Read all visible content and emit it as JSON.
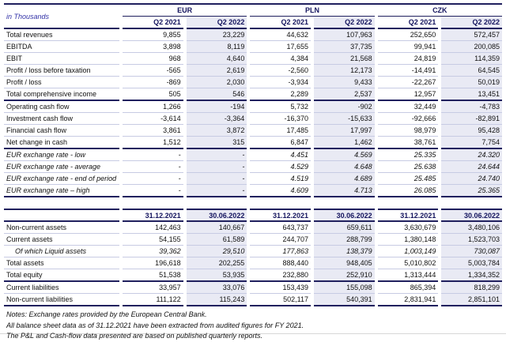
{
  "colors": {
    "accent_navy": "#20205e",
    "header_text": "#14145e",
    "unit_label_blue": "#3434a8",
    "shaded_column": "#e9eaf4",
    "row_separator": "#c7cbe3"
  },
  "table": {
    "unit_label": "in Thousands",
    "currency_groups": [
      "EUR",
      "PLN",
      "CZK"
    ],
    "q_headers": [
      "Q2 2021",
      "Q2 2022",
      "Q2 2021",
      "Q2 2022",
      "Q2 2021",
      "Q2 2022"
    ],
    "date_headers": [
      "31.12.2021",
      "30.06.2022",
      "31.12.2021",
      "30.06.2022",
      "31.12.2021",
      "30.06.2022"
    ],
    "pnl_rows": [
      {
        "label": "Total revenues",
        "values": [
          "9,855",
          "23,229",
          "44,632",
          "107,963",
          "252,650",
          "572,457"
        ]
      },
      {
        "label": "EBITDA",
        "values": [
          "3,898",
          "8,119",
          "17,655",
          "37,735",
          "99,941",
          "200,085"
        ]
      },
      {
        "label": "EBIT",
        "values": [
          "968",
          "4,640",
          "4,384",
          "21,568",
          "24,819",
          "114,359"
        ]
      },
      {
        "label": "Profit / loss before taxation",
        "values": [
          "-565",
          "2,619",
          "-2,560",
          "12,173",
          "-14,491",
          "64,545"
        ]
      },
      {
        "label": "Profit / loss",
        "values": [
          "-869",
          "2,030",
          "-3,934",
          "9,433",
          "-22,267",
          "50,019"
        ]
      },
      {
        "label": "Total comprehensive income",
        "values": [
          "505",
          "546",
          "2,289",
          "2,537",
          "12,957",
          "13,451"
        ],
        "thick": true
      }
    ],
    "cashflow_rows": [
      {
        "label": "Operating cash flow",
        "values": [
          "1,266",
          "-194",
          "5,732",
          "-902",
          "32,449",
          "-4,783"
        ]
      },
      {
        "label": "Investment cash flow",
        "values": [
          "-3,614",
          "-3,364",
          "-16,370",
          "-15,633",
          "-92,666",
          "-82,891"
        ]
      },
      {
        "label": "Financial cash flow",
        "values": [
          "3,861",
          "3,872",
          "17,485",
          "17,997",
          "98,979",
          "95,428"
        ]
      },
      {
        "label": "Net change in cash",
        "values": [
          "1,512",
          "315",
          "6,847",
          "1,462",
          "38,761",
          "7,754"
        ],
        "thick": true
      }
    ],
    "fx_rows": [
      {
        "label": "EUR exchange rate - low",
        "values": [
          "-",
          "-",
          "4.451",
          "4.569",
          "25.335",
          "24.320"
        ],
        "italic": true
      },
      {
        "label": "EUR exchange rate - average",
        "values": [
          "-",
          "-",
          "4.529",
          "4.648",
          "25.638",
          "24.644"
        ],
        "italic": true
      },
      {
        "label": "EUR exchange rate - end of period",
        "values": [
          "-",
          "-",
          "4.519",
          "4.689",
          "25.485",
          "24.740"
        ],
        "italic": true
      },
      {
        "label": "EUR exchange rate – high",
        "values": [
          "-",
          "-",
          "4.609",
          "4.713",
          "26.085",
          "25.365"
        ],
        "italic": true,
        "thick": true
      }
    ],
    "balance_rows": [
      {
        "label": "Non-current assets",
        "values": [
          "142,463",
          "140,667",
          "643,737",
          "659,611",
          "3,630,679",
          "3,480,106"
        ]
      },
      {
        "label": "Current assets",
        "values": [
          "54,155",
          "61,589",
          "244,707",
          "288,799",
          "1,380,148",
          "1,523,703"
        ]
      },
      {
        "label": "Of which Liquid assets",
        "values": [
          "39,362",
          "29,510",
          "177,863",
          "138,379",
          "1,003,149",
          "730,087"
        ],
        "italic": true,
        "indent": true
      },
      {
        "label": "Total assets",
        "values": [
          "196,618",
          "202,255",
          "888,440",
          "948,405",
          "5,010,802",
          "5,003,784"
        ]
      },
      {
        "label": "Total equity",
        "values": [
          "51,538",
          "53,935",
          "232,880",
          "252,910",
          "1,313,444",
          "1,334,352"
        ],
        "thick": true
      },
      {
        "label": "Current liabilities",
        "values": [
          "33,957",
          "33,076",
          "153,439",
          "155,098",
          "865,394",
          "818,299"
        ]
      },
      {
        "label": "Non-current liabilities",
        "values": [
          "111,122",
          "115,243",
          "502,117",
          "540,391",
          "2,831,941",
          "2,851,101"
        ],
        "thick": true
      }
    ],
    "notes": [
      "Notes: Exchange rates provided by the European Central Bank.",
      "All balance sheet data as of 31.12.2021 have been extracted from audited figures for FY 2021.",
      "The P&L and Cash-flow data presented are based on published quarterly reports."
    ]
  }
}
